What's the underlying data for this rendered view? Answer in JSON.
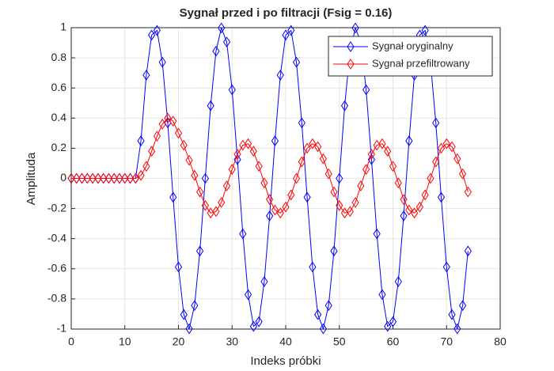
{
  "chart_data": {
    "type": "line",
    "title": "Sygnał przed i po filtracji (Fsig = 0.16)",
    "xlabel": "Indeks próbki",
    "ylabel": "Amplituda",
    "xlim": [
      0,
      80
    ],
    "xticks": [
      0,
      10,
      20,
      30,
      40,
      50,
      60,
      70,
      80
    ],
    "ylim": [
      -1,
      1
    ],
    "yticks": [
      -1,
      -0.8,
      -0.6,
      -0.4,
      -0.2,
      0,
      0.2,
      0.4,
      0.6,
      0.8,
      1
    ],
    "grid": true,
    "legend_position": "upper-right",
    "x": [
      0,
      1,
      2,
      3,
      4,
      5,
      6,
      7,
      8,
      9,
      10,
      11,
      12,
      13,
      14,
      15,
      16,
      17,
      18,
      19,
      20,
      21,
      22,
      23,
      24,
      25,
      26,
      27,
      28,
      29,
      30,
      31,
      32,
      33,
      34,
      35,
      36,
      37,
      38,
      39,
      40,
      41,
      42,
      43,
      44,
      45,
      46,
      47,
      48,
      49,
      50,
      51,
      52,
      53,
      54,
      55,
      56,
      57,
      58,
      59,
      60,
      61,
      62,
      63,
      64,
      65,
      66,
      67,
      68,
      69,
      70,
      71,
      72,
      73,
      74
    ],
    "series": [
      {
        "name": "Sygnał oryginalny",
        "color": "#0000ff",
        "values": [
          0,
          0,
          0,
          0,
          0,
          0,
          0,
          0,
          0,
          0,
          0,
          0,
          0,
          0.249,
          0.685,
          0.951,
          0.982,
          0.771,
          0.368,
          -0.125,
          -0.588,
          -0.904,
          -0.998,
          -0.844,
          -0.482,
          0,
          0.482,
          0.844,
          0.998,
          0.905,
          0.588,
          0.125,
          -0.368,
          -0.771,
          -0.982,
          -0.951,
          -0.685,
          -0.249,
          0.249,
          0.685,
          0.951,
          0.982,
          0.771,
          0.368,
          -0.125,
          -0.588,
          -0.904,
          -0.998,
          -0.844,
          -0.482,
          0,
          0.482,
          0.844,
          0.998,
          0.905,
          0.588,
          0.125,
          -0.368,
          -0.771,
          -0.982,
          -0.951,
          -0.685,
          -0.249,
          0.249,
          0.685,
          0.951,
          0.982,
          0.771,
          0.368,
          -0.125,
          -0.588,
          -0.904,
          -0.998,
          -0.844,
          -0.482
        ]
      },
      {
        "name": "Sygnał przefiltrowany",
        "color": "#ff0000",
        "values": [
          0,
          0,
          0,
          0,
          0,
          0,
          0,
          0,
          0,
          0,
          0,
          0,
          0,
          0.02,
          0.08,
          0.18,
          0.28,
          0.36,
          0.4,
          0.38,
          0.3,
          0.22,
          0.12,
          0.02,
          -0.09,
          -0.18,
          -0.23,
          -0.22,
          -0.16,
          -0.05,
          0.06,
          0.16,
          0.22,
          0.23,
          0.18,
          0.08,
          -0.03,
          -0.14,
          -0.21,
          -0.23,
          -0.19,
          -0.11,
          0,
          0.11,
          0.2,
          0.23,
          0.21,
          0.13,
          0.03,
          -0.09,
          -0.18,
          -0.23,
          -0.22,
          -0.16,
          -0.05,
          0.06,
          0.16,
          0.22,
          0.23,
          0.18,
          0.08,
          -0.03,
          -0.14,
          -0.21,
          -0.23,
          -0.19,
          -0.11,
          0,
          0.11,
          0.2,
          0.23,
          0.21,
          0.13,
          0.03,
          -0.09
        ]
      }
    ]
  }
}
